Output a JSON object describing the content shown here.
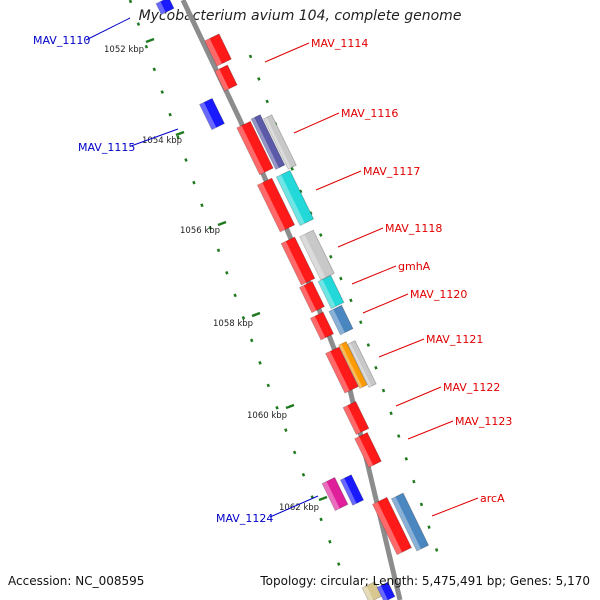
{
  "title": "Mycobacterium avium 104, complete genome",
  "footer": {
    "accession": "Accession: NC_008595",
    "summary": "Topology: circular; Length: 5,475,491 bp; Genes: 5,170"
  },
  "ruler": [
    {
      "label": "1052 kbp"
    },
    {
      "label": "1054 kbp"
    },
    {
      "label": "1056 kbp"
    },
    {
      "label": "1058 kbp"
    },
    {
      "label": "1060 kbp"
    },
    {
      "label": "1062 kbp"
    }
  ],
  "gene_labels": [
    {
      "name": "MAV_1110",
      "strand": "minus"
    },
    {
      "name": "MAV_1114",
      "strand": "plus"
    },
    {
      "name": "MAV_1115",
      "strand": "minus"
    },
    {
      "name": "MAV_1116",
      "strand": "plus"
    },
    {
      "name": "MAV_1117",
      "strand": "plus"
    },
    {
      "name": "MAV_1118",
      "strand": "plus"
    },
    {
      "name": "gmhA",
      "strand": "plus"
    },
    {
      "name": "MAV_1120",
      "strand": "plus"
    },
    {
      "name": "MAV_1121",
      "strand": "plus"
    },
    {
      "name": "MAV_1122",
      "strand": "plus"
    },
    {
      "name": "MAV_1123",
      "strand": "plus"
    },
    {
      "name": "MAV_1124",
      "strand": "minus"
    },
    {
      "name": "arcA",
      "strand": "plus"
    }
  ],
  "colors": {
    "plus_label": "#e00000",
    "minus_label": "#0000c8",
    "backbone": "#8c8c8c",
    "tick": "#1f7a1f",
    "gene_red": "#ff1a1a",
    "gene_blue": "#1a1aff",
    "gene_navy": "#5a5aa8",
    "gene_grey": "#c8c8c8",
    "gene_cyan": "#22d8d8",
    "gene_steel": "#4a86c0",
    "gene_orange": "#ff9a00",
    "gene_magenta": "#e0209a",
    "gene_tan": "#d8c890"
  }
}
